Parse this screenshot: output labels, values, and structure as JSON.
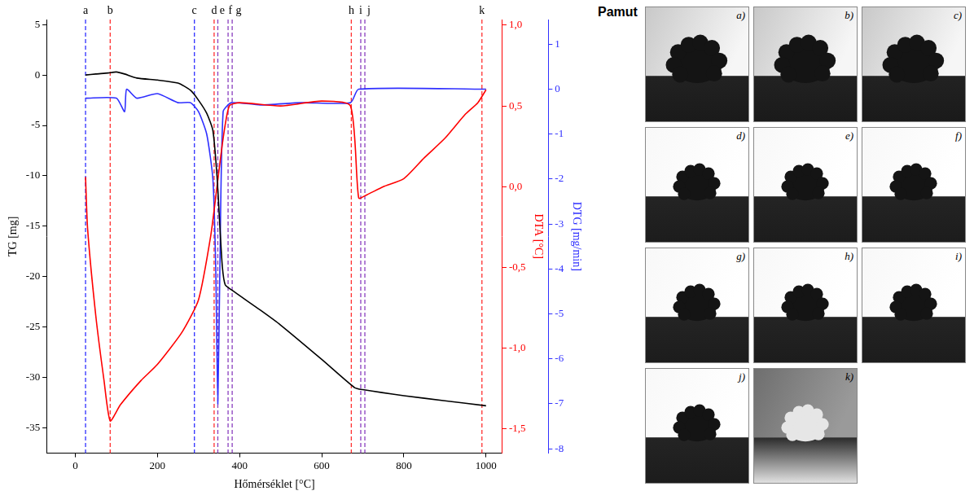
{
  "chart_data": {
    "type": "line",
    "x_label": "Hőmérséklet [°C]",
    "y_label": "TG [mg]",
    "y2_label": "DTA [°C]",
    "y3_label": "DTG [mg/min]",
    "xlim": [
      -70,
      1040
    ],
    "xticks": [
      0,
      200,
      400,
      600,
      800,
      1000
    ],
    "ylim": [
      -37.5,
      5.5
    ],
    "yticks": [
      5,
      0,
      -5,
      -10,
      -15,
      -20,
      -25,
      -30,
      -35
    ],
    "y2lim": [
      -1.65,
      1.035
    ],
    "y2ticks": [
      {
        "value": 1.0,
        "label": "1,0"
      },
      {
        "value": 0.5,
        "label": "0,5"
      },
      {
        "value": 0.0,
        "label": "0,0"
      },
      {
        "value": -0.5,
        "label": "-0,5"
      },
      {
        "value": -1.0,
        "label": "-1,0"
      },
      {
        "value": -1.5,
        "label": "-1,5"
      }
    ],
    "y3lim": [
      -8.1,
      1.55
    ],
    "y3ticks": [
      1,
      0,
      -1,
      -2,
      -3,
      -4,
      -5,
      -6,
      -7,
      -8
    ],
    "grid": false,
    "series": [
      {
        "color": "#000000",
        "axis": "y",
        "x": [
          25,
          50,
          80,
          100,
          120,
          150,
          200,
          250,
          280,
          300,
          320,
          335,
          345,
          352,
          358,
          365,
          380,
          450,
          500,
          600,
          680,
          700,
          800,
          900,
          1000
        ],
        "values": [
          0,
          0.1,
          0.2,
          0.3,
          0.1,
          -0.3,
          -0.5,
          -0.8,
          -1.5,
          -2.5,
          -3.8,
          -5.5,
          -10,
          -15,
          -19,
          -20.8,
          -21.3,
          -23.3,
          -24.8,
          -28.2,
          -31,
          -31.2,
          -31.8,
          -32.3,
          -32.8
        ]
      },
      {
        "color": "#ff0000",
        "axis": "y2",
        "x": [
          25,
          30,
          50,
          70,
          85,
          110,
          160,
          200,
          260,
          300,
          330,
          345,
          360,
          375,
          400,
          500,
          600,
          670,
          690,
          710,
          750,
          800,
          850,
          900,
          950,
          980,
          1000
        ],
        "values": [
          0.06,
          -0.26,
          -0.8,
          -1.2,
          -1.45,
          -1.35,
          -1.2,
          -1.1,
          -0.9,
          -0.7,
          -0.3,
          0.0,
          0.3,
          0.5,
          0.52,
          0.5,
          0.53,
          0.5,
          -0.07,
          -0.05,
          0.0,
          0.05,
          0.18,
          0.3,
          0.45,
          0.52,
          0.6
        ]
      },
      {
        "color": "#2f2fff",
        "axis": "y3",
        "x": [
          25,
          100,
          120,
          125,
          150,
          200,
          250,
          280,
          300,
          320,
          335,
          342,
          347,
          352,
          360,
          380,
          450,
          550,
          670,
          690,
          1000
        ],
        "values": [
          -0.2,
          -0.2,
          -0.5,
          0,
          -0.2,
          -0.1,
          -0.3,
          -0.3,
          -0.5,
          -1,
          -2,
          -4,
          -7,
          -4,
          -0.5,
          -0.3,
          -0.35,
          -0.3,
          -0.3,
          0,
          0
        ]
      }
    ],
    "markers": [
      {
        "label": "a",
        "x": 25,
        "color": "#2f2fff"
      },
      {
        "label": "b",
        "x": 85,
        "color": "#ff3030"
      },
      {
        "label": "c",
        "x": 290,
        "color": "#2f2fff"
      },
      {
        "label": "d",
        "x": 338,
        "color": "#ff3030"
      },
      {
        "label": "e",
        "x": 347,
        "color": "#8a3fbf"
      },
      {
        "label": "f",
        "x": 372,
        "color": "#8a3fbf"
      },
      {
        "label": "g",
        "x": 382,
        "color": "#8a3fbf"
      },
      {
        "label": "h",
        "x": 672,
        "color": "#ff3030"
      },
      {
        "label": "i",
        "x": 695,
        "color": "#8a3fbf"
      },
      {
        "label": "j",
        "x": 705,
        "color": "#8a3fbf"
      },
      {
        "label": "k",
        "x": 990,
        "color": "#ff3030"
      }
    ]
  },
  "photos": {
    "title": "Pamut",
    "panels": [
      "a)",
      "b)",
      "c)",
      "d)",
      "e)",
      "f)",
      "g)",
      "h)",
      "i)",
      "j)",
      "k)"
    ]
  }
}
